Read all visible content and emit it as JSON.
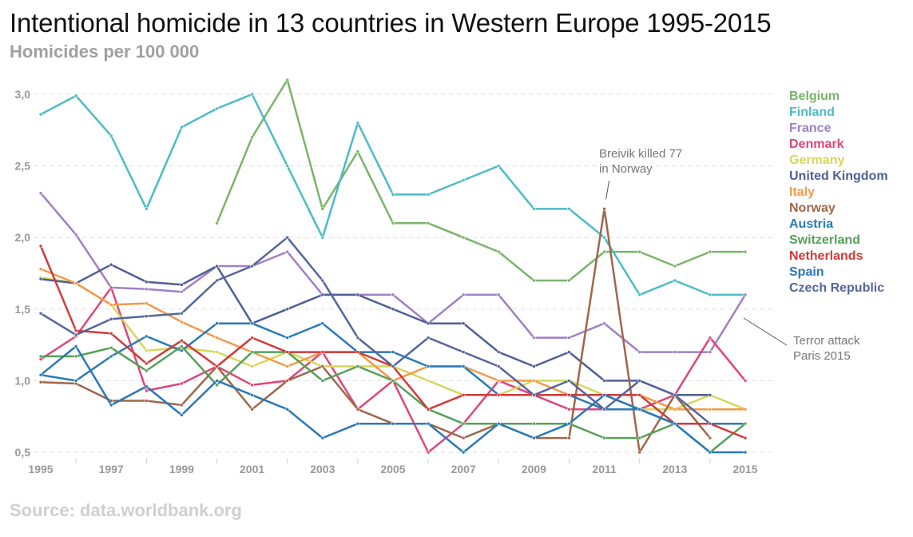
{
  "title": "Intentional homicide in 13 countries in Western Europe 1995-2015",
  "subtitle": "Homicides per 100 000",
  "source": "Source: data.worldbank.org",
  "chart_data": {
    "type": "line",
    "title": "Intentional homicide in 13 countries in Western Europe 1995-2015",
    "ylabel": "Homicides per 100 000",
    "xlabel": "",
    "x": [
      1995,
      1996,
      1997,
      1998,
      1999,
      2000,
      2001,
      2002,
      2003,
      2004,
      2005,
      2006,
      2007,
      2008,
      2009,
      2010,
      2011,
      2012,
      2013,
      2014,
      2015
    ],
    "x_tick_labels": [
      "1995",
      "1997",
      "1999",
      "2001",
      "2003",
      "2005",
      "2007",
      "2009",
      "2011",
      "2013",
      "2015"
    ],
    "y_ticks": [
      0.5,
      1.0,
      1.5,
      2.0,
      2.5,
      3.0
    ],
    "y_tick_labels": [
      "0,5",
      "1,0",
      "1,5",
      "2,0",
      "2,5",
      "3,0"
    ],
    "ylim": [
      0.5,
      3.0
    ],
    "grid": "horizontal dashed",
    "legend_position": "right",
    "series": [
      {
        "name": "Belgium",
        "color": "#7ab46a",
        "values": [
          null,
          null,
          null,
          null,
          null,
          2.1,
          2.7,
          3.1,
          2.2,
          2.6,
          2.1,
          2.1,
          2.0,
          1.9,
          1.7,
          1.7,
          1.9,
          1.9,
          1.8,
          1.9,
          1.9
        ]
      },
      {
        "name": "Finland",
        "color": "#4bbcc6",
        "values": [
          2.86,
          2.99,
          2.71,
          2.2,
          2.77,
          2.9,
          3.0,
          2.5,
          2.0,
          2.8,
          2.3,
          2.3,
          2.4,
          2.5,
          2.2,
          2.2,
          2.0,
          1.6,
          1.7,
          1.6,
          1.6
        ]
      },
      {
        "name": "France",
        "color": "#9f80c4",
        "values": [
          2.31,
          2.02,
          1.65,
          1.64,
          1.62,
          1.8,
          1.8,
          1.9,
          1.6,
          1.6,
          1.6,
          1.4,
          1.6,
          1.6,
          1.3,
          1.3,
          1.4,
          1.2,
          1.2,
          1.2,
          1.6
        ]
      },
      {
        "name": "Denmark",
        "color": "#e0457b",
        "values": [
          1.15,
          1.31,
          1.65,
          0.93,
          0.98,
          1.1,
          0.97,
          1.0,
          1.2,
          0.8,
          1.0,
          0.5,
          0.7,
          1.0,
          0.9,
          0.8,
          0.8,
          0.8,
          0.9,
          1.3,
          1.0
        ]
      },
      {
        "name": "Germany",
        "color": "#d6d65a",
        "values": [
          1.72,
          1.68,
          1.53,
          1.21,
          1.23,
          1.2,
          1.1,
          1.2,
          1.1,
          1.1,
          1.1,
          1.0,
          0.9,
          0.9,
          1.0,
          1.0,
          0.9,
          0.8,
          0.8,
          0.9,
          0.8
        ]
      },
      {
        "name": "United Kingdom",
        "color": "#4f5f96",
        "values": [
          1.71,
          1.68,
          1.81,
          1.69,
          1.67,
          1.8,
          1.4,
          1.5,
          1.6,
          1.6,
          1.5,
          1.4,
          1.4,
          1.2,
          1.1,
          1.2,
          1.0,
          1.0,
          0.9,
          0.9,
          null
        ]
      },
      {
        "name": "Italy",
        "color": "#f29a4a",
        "values": [
          1.78,
          1.68,
          1.53,
          1.54,
          1.41,
          1.3,
          1.2,
          1.1,
          1.2,
          1.2,
          1.0,
          1.1,
          1.1,
          1.0,
          1.0,
          0.9,
          0.9,
          0.9,
          0.8,
          0.8,
          0.8
        ]
      },
      {
        "name": "Norway",
        "color": "#a0664a",
        "values": [
          0.99,
          0.98,
          0.86,
          0.86,
          0.83,
          1.1,
          0.8,
          1.0,
          1.1,
          0.8,
          0.7,
          0.7,
          0.6,
          0.7,
          0.6,
          0.6,
          2.2,
          0.5,
          0.9,
          0.6,
          null
        ]
      },
      {
        "name": "Austria",
        "color": "#2a7ab8",
        "values": [
          1.04,
          1.0,
          1.17,
          1.31,
          1.21,
          1.4,
          1.4,
          1.3,
          1.4,
          1.2,
          1.2,
          1.1,
          1.1,
          0.9,
          0.9,
          0.9,
          0.8,
          0.8,
          0.7,
          0.7,
          0.7
        ]
      },
      {
        "name": "Switzerland",
        "color": "#56a05a",
        "values": [
          1.17,
          1.17,
          1.23,
          1.07,
          1.24,
          0.97,
          1.2,
          1.2,
          1.0,
          1.1,
          1.0,
          0.8,
          0.7,
          0.7,
          0.7,
          0.7,
          0.6,
          0.6,
          0.7,
          0.5,
          0.7
        ]
      },
      {
        "name": "Netherlands",
        "color": "#d03a3a",
        "values": [
          1.94,
          1.35,
          1.33,
          1.12,
          1.28,
          1.1,
          1.3,
          1.2,
          1.2,
          1.2,
          1.1,
          0.8,
          0.9,
          0.9,
          0.9,
          0.9,
          0.9,
          0.9,
          0.7,
          0.7,
          0.6
        ]
      },
      {
        "name": "Spain",
        "color": "#2a78b8",
        "values": [
          1.04,
          1.24,
          0.83,
          0.96,
          0.76,
          1.0,
          0.9,
          0.8,
          0.6,
          0.7,
          0.7,
          0.7,
          0.5,
          0.7,
          0.6,
          0.7,
          0.9,
          0.8,
          0.7,
          0.5,
          0.5
        ]
      },
      {
        "name": "Czech Republic",
        "color": "#56659c",
        "values": [
          1.47,
          1.32,
          1.43,
          1.45,
          1.47,
          1.7,
          1.8,
          2.0,
          1.7,
          1.3,
          1.1,
          1.3,
          1.2,
          1.1,
          0.9,
          1.0,
          0.8,
          1.0,
          0.9,
          0.7,
          null
        ]
      }
    ],
    "annotations": [
      {
        "text_lines": [
          "Breivik killed 77",
          "in Norway"
        ],
        "x": 2011,
        "y": 2.2
      },
      {
        "text_lines": [
          "Terror attack",
          "Paris 2015"
        ],
        "x": 2015,
        "y": 1.6
      }
    ]
  }
}
